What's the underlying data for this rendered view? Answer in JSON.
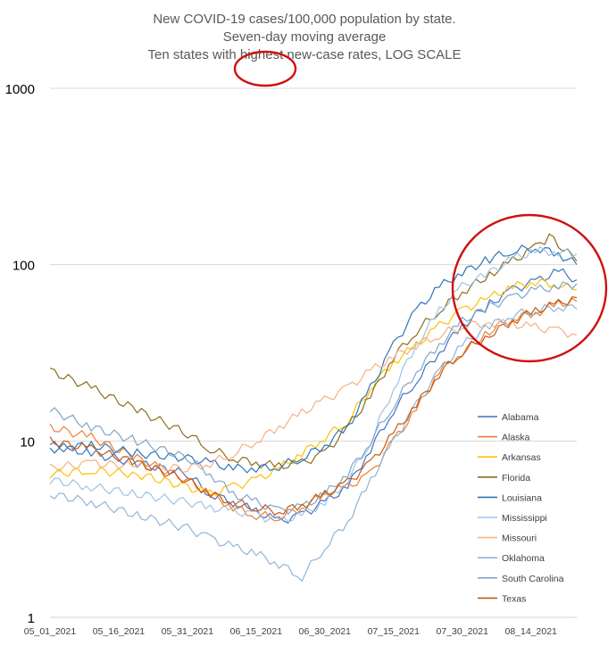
{
  "chart_data": {
    "type": "line",
    "title_lines": [
      "New COVID-19 cases/100,000 population by state.",
      "Seven-day moving average",
      "Ten states with highest new-case rates, LOG SCALE"
    ],
    "yscale": "log",
    "ylim": [
      1,
      1000
    ],
    "yticks": [
      {
        "value": 1,
        "label": "1"
      },
      {
        "value": 10,
        "label": "10"
      },
      {
        "value": 100,
        "label": "100"
      },
      {
        "value": 1000,
        "label": "1000"
      }
    ],
    "xlim": [
      "2021-05-01",
      "2021-08-24"
    ],
    "xticks": [
      {
        "date": "2021-05-01",
        "label": "05_01_2021"
      },
      {
        "date": "2021-05-16",
        "label": "05_16_2021"
      },
      {
        "date": "2021-05-31",
        "label": "05_31_2021"
      },
      {
        "date": "2021-06-15",
        "label": "06_15_2021"
      },
      {
        "date": "2021-06-30",
        "label": "06_30_2021"
      },
      {
        "date": "2021-07-15",
        "label": "07_15_2021"
      },
      {
        "date": "2021-07-30",
        "label": "07_30_2021"
      },
      {
        "date": "2021-08-14",
        "label": "08_14_2021"
      }
    ],
    "grid": true,
    "legend_position": "right",
    "series": [
      {
        "name": "Alabama",
        "color": "#4472c4",
        "points": [
          [
            "2021-05-01",
            9.5
          ],
          [
            "2021-05-10",
            8.5
          ],
          [
            "2021-05-20",
            7.5
          ],
          [
            "2021-05-31",
            6.5
          ],
          [
            "2021-06-05",
            5.0
          ],
          [
            "2021-06-10",
            4.5
          ],
          [
            "2021-06-15",
            4.0
          ],
          [
            "2021-06-20",
            3.5
          ],
          [
            "2021-06-25",
            3.8
          ],
          [
            "2021-06-30",
            4.5
          ],
          [
            "2021-07-05",
            5.5
          ],
          [
            "2021-07-10",
            9.0
          ],
          [
            "2021-07-15",
            15.0
          ],
          [
            "2021-07-20",
            22.0
          ],
          [
            "2021-07-25",
            32.0
          ],
          [
            "2021-07-30",
            45.0
          ],
          [
            "2021-08-05",
            60.0
          ],
          [
            "2021-08-10",
            72.0
          ],
          [
            "2021-08-15",
            80.0
          ],
          [
            "2021-08-20",
            92.0
          ],
          [
            "2021-08-24",
            82.0
          ]
        ]
      },
      {
        "name": "Alaska",
        "color": "#ed7d31",
        "points": [
          [
            "2021-05-01",
            12.0
          ],
          [
            "2021-05-10",
            10.5
          ],
          [
            "2021-05-20",
            8.0
          ],
          [
            "2021-05-31",
            6.0
          ],
          [
            "2021-06-05",
            5.0
          ],
          [
            "2021-06-10",
            4.2
          ],
          [
            "2021-06-15",
            3.8
          ],
          [
            "2021-06-20",
            3.7
          ],
          [
            "2021-06-25",
            4.2
          ],
          [
            "2021-06-30",
            5.0
          ],
          [
            "2021-07-05",
            5.5
          ],
          [
            "2021-07-10",
            6.5
          ],
          [
            "2021-07-15",
            10.0
          ],
          [
            "2021-07-20",
            15.0
          ],
          [
            "2021-07-25",
            25.0
          ],
          [
            "2021-07-30",
            32.0
          ],
          [
            "2021-08-05",
            42.0
          ],
          [
            "2021-08-10",
            50.0
          ],
          [
            "2021-08-15",
            53.0
          ],
          [
            "2021-08-20",
            60.0
          ],
          [
            "2021-08-24",
            62.0
          ]
        ]
      },
      {
        "name": "Arkansas",
        "color": "#ffc000",
        "points": [
          [
            "2021-05-01",
            6.5
          ],
          [
            "2021-05-10",
            6.8
          ],
          [
            "2021-05-20",
            6.5
          ],
          [
            "2021-05-31",
            5.5
          ],
          [
            "2021-06-05",
            5.0
          ],
          [
            "2021-06-10",
            5.5
          ],
          [
            "2021-06-15",
            6.0
          ],
          [
            "2021-06-20",
            7.0
          ],
          [
            "2021-06-25",
            8.5
          ],
          [
            "2021-06-30",
            10.5
          ],
          [
            "2021-07-05",
            13.0
          ],
          [
            "2021-07-10",
            20.0
          ],
          [
            "2021-07-15",
            28.0
          ],
          [
            "2021-07-20",
            35.0
          ],
          [
            "2021-07-25",
            45.0
          ],
          [
            "2021-07-30",
            55.0
          ],
          [
            "2021-08-05",
            65.0
          ],
          [
            "2021-08-10",
            75.0
          ],
          [
            "2021-08-15",
            80.0
          ],
          [
            "2021-08-20",
            77.0
          ],
          [
            "2021-08-24",
            72.0
          ]
        ]
      },
      {
        "name": "Florida",
        "color": "#8c6d1f",
        "points": [
          [
            "2021-05-01",
            25.0
          ],
          [
            "2021-05-10",
            20.0
          ],
          [
            "2021-05-20",
            15.0
          ],
          [
            "2021-05-31",
            11.0
          ],
          [
            "2021-06-05",
            9.0
          ],
          [
            "2021-06-10",
            8.0
          ],
          [
            "2021-06-15",
            7.5
          ],
          [
            "2021-06-20",
            7.2
          ],
          [
            "2021-06-25",
            7.5
          ],
          [
            "2021-06-30",
            8.5
          ],
          [
            "2021-07-05",
            12.0
          ],
          [
            "2021-07-10",
            18.0
          ],
          [
            "2021-07-15",
            30.0
          ],
          [
            "2021-07-20",
            42.0
          ],
          [
            "2021-07-25",
            55.0
          ],
          [
            "2021-07-30",
            70.0
          ],
          [
            "2021-08-05",
            88.0
          ],
          [
            "2021-08-10",
            105.0
          ],
          [
            "2021-08-15",
            125.0
          ],
          [
            "2021-08-18",
            145.0
          ],
          [
            "2021-08-24",
            105.0
          ]
        ]
      },
      {
        "name": "Louisiana",
        "color": "#2e75b6",
        "points": [
          [
            "2021-05-01",
            9.0
          ],
          [
            "2021-05-10",
            9.5
          ],
          [
            "2021-05-20",
            8.5
          ],
          [
            "2021-05-31",
            8.0
          ],
          [
            "2021-06-05",
            7.5
          ],
          [
            "2021-06-10",
            7.0
          ],
          [
            "2021-06-15",
            7.0
          ],
          [
            "2021-06-20",
            7.2
          ],
          [
            "2021-06-25",
            8.0
          ],
          [
            "2021-06-30",
            9.5
          ],
          [
            "2021-07-05",
            12.0
          ],
          [
            "2021-07-10",
            20.0
          ],
          [
            "2021-07-15",
            35.0
          ],
          [
            "2021-07-20",
            55.0
          ],
          [
            "2021-07-25",
            75.0
          ],
          [
            "2021-07-30",
            90.0
          ],
          [
            "2021-08-05",
            108.0
          ],
          [
            "2021-08-10",
            120.0
          ],
          [
            "2021-08-15",
            125.0
          ],
          [
            "2021-08-20",
            115.0
          ],
          [
            "2021-08-24",
            100.0
          ]
        ]
      },
      {
        "name": "Mississippi",
        "color": "#9dc3e6",
        "points": [
          [
            "2021-05-01",
            6.0
          ],
          [
            "2021-05-10",
            5.5
          ],
          [
            "2021-05-20",
            5.0
          ],
          [
            "2021-05-31",
            4.5
          ],
          [
            "2021-06-05",
            4.2
          ],
          [
            "2021-06-10",
            4.0
          ],
          [
            "2021-06-15",
            3.8
          ],
          [
            "2021-06-20",
            3.5
          ],
          [
            "2021-06-25",
            3.8
          ],
          [
            "2021-06-30",
            4.5
          ],
          [
            "2021-07-05",
            6.0
          ],
          [
            "2021-07-10",
            10.0
          ],
          [
            "2021-07-15",
            20.0
          ],
          [
            "2021-07-20",
            35.0
          ],
          [
            "2021-07-25",
            55.0
          ],
          [
            "2021-07-30",
            75.0
          ],
          [
            "2021-08-05",
            90.0
          ],
          [
            "2021-08-10",
            108.0
          ],
          [
            "2021-08-15",
            120.0
          ],
          [
            "2021-08-20",
            118.0
          ],
          [
            "2021-08-24",
            115.0
          ]
        ]
      },
      {
        "name": "Missouri",
        "color": "#f4b183",
        "points": [
          [
            "2021-05-01",
            7.0
          ],
          [
            "2021-05-10",
            7.5
          ],
          [
            "2021-05-20",
            7.2
          ],
          [
            "2021-05-31",
            7.0
          ],
          [
            "2021-06-05",
            7.5
          ],
          [
            "2021-06-10",
            8.5
          ],
          [
            "2021-06-15",
            10.0
          ],
          [
            "2021-06-20",
            12.0
          ],
          [
            "2021-06-25",
            14.5
          ],
          [
            "2021-06-30",
            17.0
          ],
          [
            "2021-07-05",
            20.0
          ],
          [
            "2021-07-10",
            25.0
          ],
          [
            "2021-07-15",
            30.0
          ],
          [
            "2021-07-20",
            35.0
          ],
          [
            "2021-07-25",
            40.0
          ],
          [
            "2021-07-30",
            45.0
          ],
          [
            "2021-08-05",
            47.0
          ],
          [
            "2021-08-10",
            46.0
          ],
          [
            "2021-08-15",
            44.0
          ],
          [
            "2021-08-20",
            42.0
          ],
          [
            "2021-08-24",
            40.0
          ]
        ]
      },
      {
        "name": "Oklahoma",
        "color": "#8fb4d9",
        "points": [
          [
            "2021-05-01",
            5.0
          ],
          [
            "2021-05-10",
            4.5
          ],
          [
            "2021-05-20",
            3.8
          ],
          [
            "2021-05-31",
            3.2
          ],
          [
            "2021-06-05",
            2.8
          ],
          [
            "2021-06-10",
            2.5
          ],
          [
            "2021-06-15",
            2.3
          ],
          [
            "2021-06-20",
            2.0
          ],
          [
            "2021-06-25",
            1.7
          ],
          [
            "2021-06-30",
            2.5
          ],
          [
            "2021-07-05",
            3.5
          ],
          [
            "2021-07-10",
            6.0
          ],
          [
            "2021-07-15",
            10.0
          ],
          [
            "2021-07-20",
            16.0
          ],
          [
            "2021-07-25",
            25.0
          ],
          [
            "2021-07-30",
            35.0
          ],
          [
            "2021-08-05",
            45.0
          ],
          [
            "2021-08-10",
            52.0
          ],
          [
            "2021-08-15",
            55.0
          ],
          [
            "2021-08-20",
            58.0
          ],
          [
            "2021-08-24",
            56.0
          ]
        ]
      },
      {
        "name": "South Carolina",
        "color": "#7fa6c9",
        "points": [
          [
            "2021-05-01",
            15.0
          ],
          [
            "2021-05-10",
            12.0
          ],
          [
            "2021-05-20",
            10.0
          ],
          [
            "2021-05-31",
            8.0
          ],
          [
            "2021-06-05",
            6.5
          ],
          [
            "2021-06-10",
            5.0
          ],
          [
            "2021-06-15",
            4.5
          ],
          [
            "2021-06-20",
            4.0
          ],
          [
            "2021-06-25",
            4.2
          ],
          [
            "2021-06-30",
            5.0
          ],
          [
            "2021-07-05",
            6.5
          ],
          [
            "2021-07-10",
            10.0
          ],
          [
            "2021-07-15",
            16.0
          ],
          [
            "2021-07-20",
            25.0
          ],
          [
            "2021-07-25",
            35.0
          ],
          [
            "2021-07-30",
            48.0
          ],
          [
            "2021-08-05",
            58.0
          ],
          [
            "2021-08-10",
            65.0
          ],
          [
            "2021-08-15",
            72.0
          ],
          [
            "2021-08-20",
            75.0
          ],
          [
            "2021-08-24",
            78.0
          ]
        ]
      },
      {
        "name": "Texas",
        "color": "#c55a11",
        "points": [
          [
            "2021-05-01",
            10.0
          ],
          [
            "2021-05-10",
            9.0
          ],
          [
            "2021-05-20",
            7.5
          ],
          [
            "2021-05-31",
            6.0
          ],
          [
            "2021-06-05",
            5.0
          ],
          [
            "2021-06-10",
            4.5
          ],
          [
            "2021-06-15",
            4.2
          ],
          [
            "2021-06-20",
            4.0
          ],
          [
            "2021-06-25",
            4.3
          ],
          [
            "2021-06-30",
            5.0
          ],
          [
            "2021-07-05",
            5.8
          ],
          [
            "2021-07-10",
            7.5
          ],
          [
            "2021-07-15",
            11.0
          ],
          [
            "2021-07-20",
            16.0
          ],
          [
            "2021-07-25",
            24.0
          ],
          [
            "2021-07-30",
            32.0
          ],
          [
            "2021-08-05",
            40.0
          ],
          [
            "2021-08-10",
            48.0
          ],
          [
            "2021-08-15",
            55.0
          ],
          [
            "2021-08-20",
            60.0
          ],
          [
            "2021-08-24",
            65.0
          ]
        ]
      }
    ],
    "annotations": {
      "color": "#d01010",
      "ellipses": [
        "highlight on the word highest in the title",
        "highlight around the late-July to August lines"
      ]
    }
  }
}
